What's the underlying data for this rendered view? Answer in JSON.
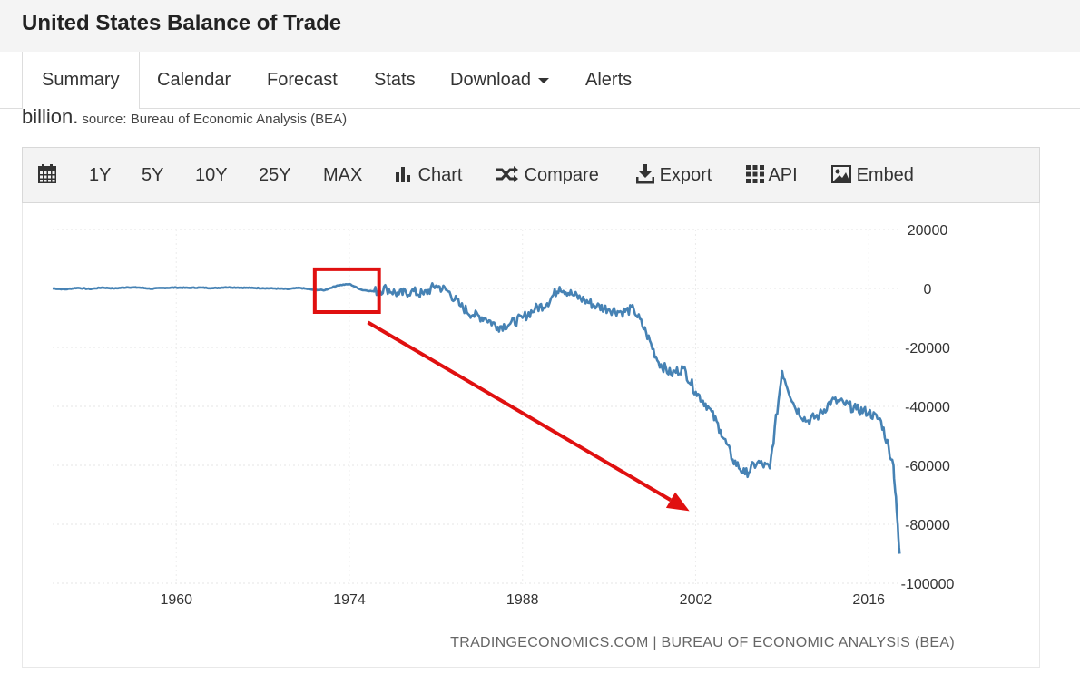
{
  "page": {
    "title": "United States Balance of Trade"
  },
  "tabs": [
    {
      "label": "Summary",
      "active": true
    },
    {
      "label": "Calendar"
    },
    {
      "label": "Forecast"
    },
    {
      "label": "Stats"
    },
    {
      "label": "Download"
    },
    {
      "label": "Alerts"
    }
  ],
  "intro": {
    "text": "billion.",
    "source": "source: Bureau of Economic Analysis (BEA)"
  },
  "toolbar": {
    "calendar_icon": "calendar-icon",
    "ranges": [
      "1Y",
      "5Y",
      "10Y",
      "25Y",
      "MAX"
    ],
    "chart_label": "Chart",
    "compare_label": "Compare",
    "export_label": "Export",
    "api_label": "API",
    "embed_label": "Embed"
  },
  "chart_data": {
    "type": "line",
    "ylim": [
      -100000,
      20000
    ],
    "yticks": [
      20000,
      0,
      -20000,
      -40000,
      -60000,
      -80000,
      -100000
    ],
    "xticks": [
      1960,
      1974,
      1988,
      2002,
      2016
    ],
    "xlim": [
      1950,
      2018.7
    ],
    "line_color": "#4682b4",
    "credit": "TRADINGECONOMICS.COM | BUREAU OF ECONOMIC ANALYSIS (BEA)",
    "x": [
      1950,
      1951,
      1952,
      1953,
      1954,
      1955,
      1956,
      1957,
      1958,
      1959,
      1960,
      1961,
      1962,
      1963,
      1964,
      1965,
      1966,
      1967,
      1968,
      1969,
      1970,
      1971,
      1972,
      1973,
      1974,
      1975,
      1976,
      1977,
      1978,
      1979,
      1980,
      1981,
      1982,
      1983,
      1984,
      1985,
      1986,
      1987,
      1988,
      1989,
      1990,
      1991,
      1992,
      1993,
      1994,
      1995,
      1996,
      1997,
      1998,
      1999,
      2000,
      2001,
      2002,
      2003,
      2004,
      2005,
      2006,
      2007,
      2008,
      2009,
      2010,
      2011,
      2012,
      2013,
      2014,
      2015,
      2016,
      2017,
      2018,
      2018.5
    ],
    "y": [
      0,
      -300,
      200,
      -200,
      300,
      0,
      400,
      300,
      -100,
      200,
      300,
      200,
      300,
      100,
      400,
      300,
      200,
      100,
      0,
      -200,
      200,
      -400,
      -600,
      1000,
      1500,
      -500,
      -1000,
      0,
      -2000,
      -1000,
      -2000,
      1000,
      -1000,
      -6000,
      -9000,
      -10000,
      -13000,
      -12000,
      -10000,
      -7000,
      -5000,
      500,
      -2000,
      -4000,
      -6000,
      -7000,
      -8000,
      -7000,
      -15000,
      -25000,
      -29000,
      -27000,
      -35000,
      -40000,
      -48000,
      -58000,
      -63000,
      -59000,
      -61000,
      -28000,
      -40000,
      -45000,
      -43000,
      -38000,
      -39000,
      -41000,
      -42000,
      -45000,
      -60000,
      -90000
    ],
    "annotation": {
      "box_x": [
        1971.2,
        1976.4
      ],
      "box_y": [
        -8000,
        6500
      ],
      "arrow_from": [
        1975.5,
        -11500
      ],
      "arrow_to": [
        2001.5,
        -75500
      ]
    }
  }
}
